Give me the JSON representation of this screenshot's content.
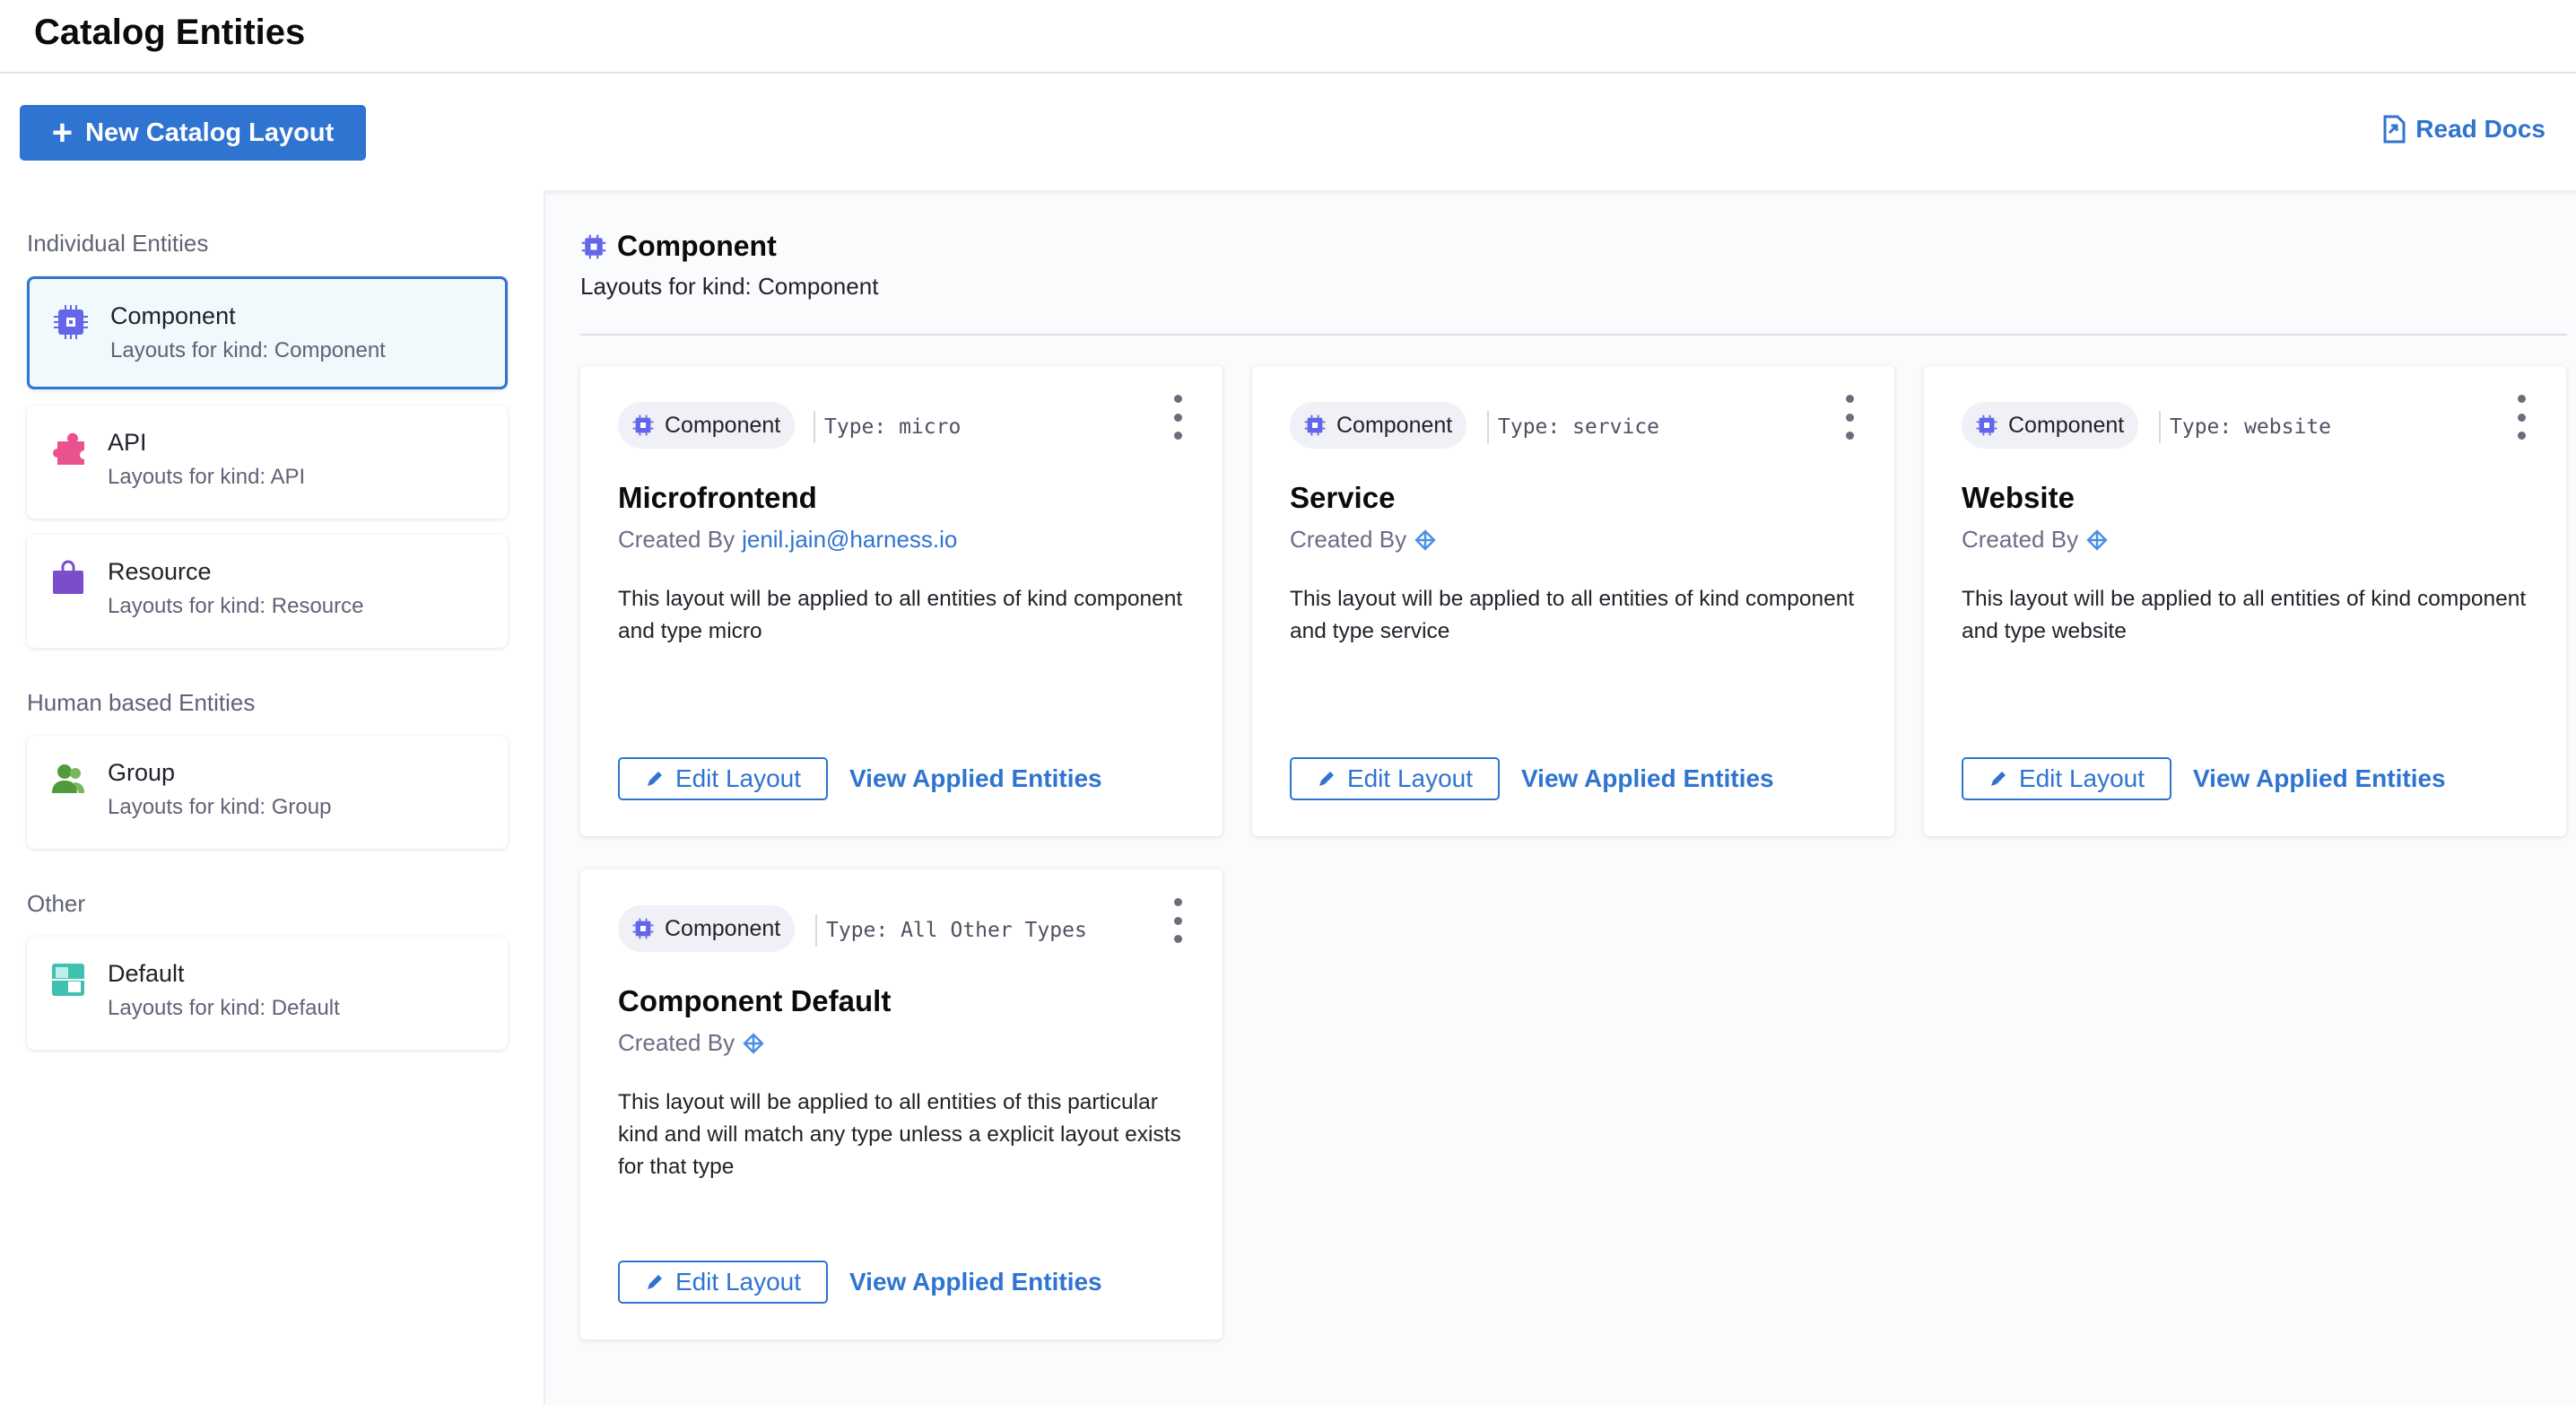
{
  "header": {
    "title": "Catalog Entities"
  },
  "toolbar": {
    "new_label": "New Catalog Layout",
    "docs_label": "Read Docs"
  },
  "sidebar": {
    "sections": [
      {
        "label": "Individual Entities",
        "items": [
          {
            "title": "Component",
            "subtitle": "Layouts for kind: Component",
            "icon": "chip-icon",
            "color": "#6366e8",
            "selected": true
          },
          {
            "title": "API",
            "subtitle": "Layouts for kind: API",
            "icon": "puzzle-icon",
            "color": "#e9528f"
          },
          {
            "title": "Resource",
            "subtitle": "Layouts for kind: Resource",
            "icon": "bag-icon",
            "color": "#7b4ccb"
          }
        ]
      },
      {
        "label": "Human based Entities",
        "items": [
          {
            "title": "Group",
            "subtitle": "Layouts for kind: Group",
            "icon": "group-icon",
            "color": "#4f9a3a"
          }
        ]
      },
      {
        "label": "Other",
        "items": [
          {
            "title": "Default",
            "subtitle": "Layouts for kind: Default",
            "icon": "default-icon",
            "color": "#3ec1b0"
          }
        ]
      }
    ]
  },
  "main": {
    "title": "Component",
    "subtitle": "Layouts for kind: Component",
    "cards": [
      {
        "chip": "Component",
        "type": "Type: micro",
        "title": "Microfrontend",
        "created_by": "Created By",
        "author": "jenil.jain@harness.io",
        "description": "This layout will be applied to all entities of kind component and type micro",
        "edit": "Edit Layout",
        "view": "View Applied Entities"
      },
      {
        "chip": "Component",
        "type": "Type: service",
        "title": "Service",
        "created_by": "Created By",
        "author": "",
        "description": "This layout will be applied to all entities of kind component and type service",
        "edit": "Edit Layout",
        "view": "View Applied Entities"
      },
      {
        "chip": "Component",
        "type": "Type: website",
        "title": "Website",
        "created_by": "Created By",
        "author": "",
        "description": "This layout will be applied to all entities of kind component and type website",
        "edit": "Edit Layout",
        "view": "View Applied Entities"
      },
      {
        "chip": "Component",
        "type": "Type: All Other Types",
        "title": "Component Default",
        "created_by": "Created By",
        "author": "",
        "description": "This layout will be applied to all entities of this particular kind and will match any type unless a explicit layout exists for that type",
        "edit": "Edit Layout",
        "view": "View Applied Entities"
      }
    ]
  }
}
